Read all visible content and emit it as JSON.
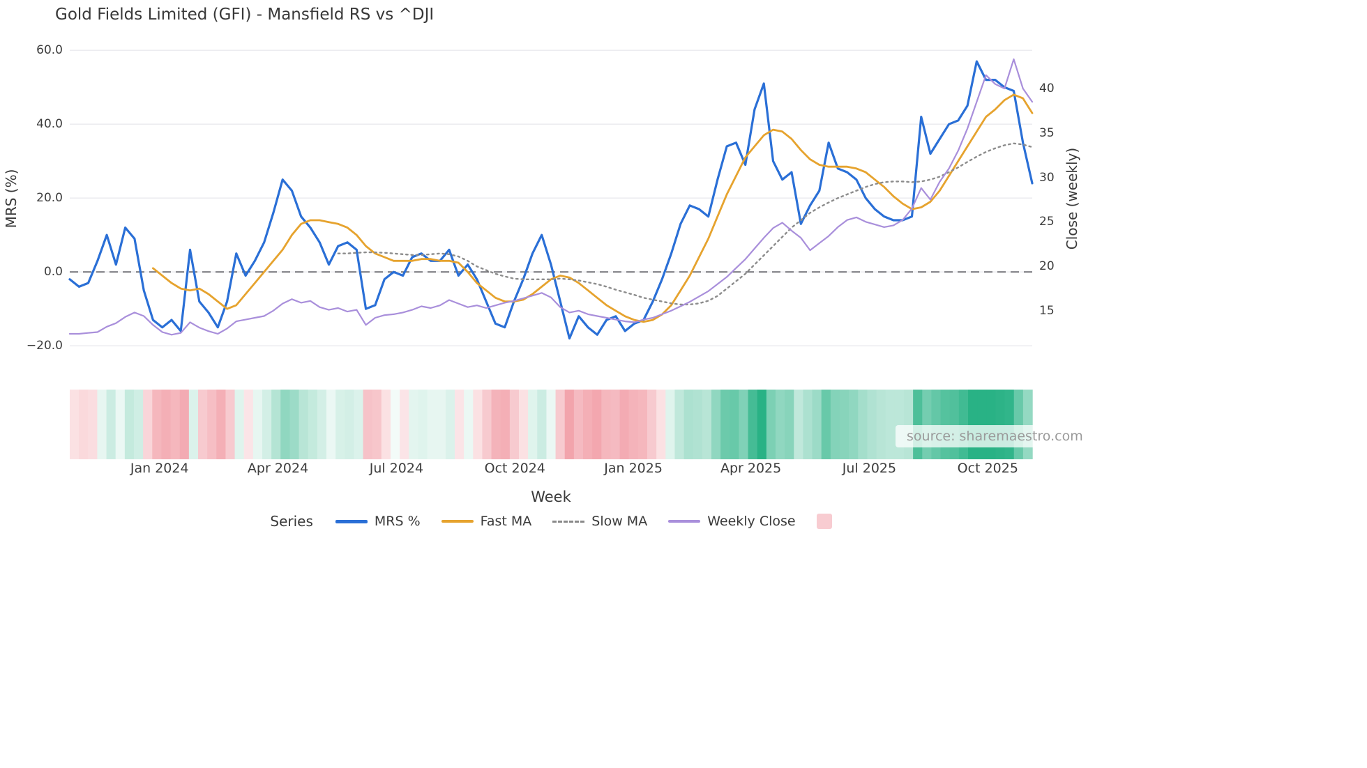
{
  "title": "Gold Fields Limited (GFI) - Mansfield RS vs ^DJI",
  "source_note": "source: sharemaestro.com",
  "chart_data": {
    "type": "line",
    "title": "Gold Fields Limited (GFI) - Mansfield RS vs ^DJI",
    "xlabel": "Week",
    "ylabel_left": "MRS (%)",
    "ylabel_right": "Close (weekly)",
    "n_points": 105,
    "left_axis": {
      "min": -22.6,
      "max": 62.3,
      "ticks": [
        60.0,
        40.0,
        20.0,
        0.0,
        -20.0
      ],
      "tick_labels": [
        "60.0",
        "40.0",
        "20.0",
        "0.0",
        "−20.0"
      ]
    },
    "right_axis": {
      "min": 9.97,
      "max": 45.25,
      "ticks": [
        40,
        35,
        30,
        25,
        20,
        15
      ],
      "tick_labels": [
        "40",
        "35",
        "30",
        "25",
        "20",
        "15"
      ]
    },
    "x_ticks": [
      {
        "pos": 9.7,
        "label": "Jan 2024"
      },
      {
        "pos": 22.5,
        "label": "Apr 2024"
      },
      {
        "pos": 35.3,
        "label": "Jul 2024"
      },
      {
        "pos": 48.1,
        "label": "Oct 2024"
      },
      {
        "pos": 60.9,
        "label": "Jan 2025"
      },
      {
        "pos": 73.6,
        "label": "Apr 2025"
      },
      {
        "pos": 86.4,
        "label": "Jul 2025"
      },
      {
        "pos": 99.2,
        "label": "Oct 2025"
      }
    ],
    "zero_line": 0,
    "grid": true,
    "legend_position": "bottom",
    "series": [
      {
        "name": "MRS %",
        "axis": "left",
        "color": "#2a6fd6",
        "width": 3.2,
        "dash": null,
        "values": [
          -2,
          -4,
          -3,
          3,
          10,
          2,
          12,
          9,
          -5,
          -13,
          -15,
          -13,
          -16,
          6,
          -8,
          -11,
          -15,
          -8,
          5,
          -1,
          3,
          8,
          16,
          25,
          22,
          15,
          12,
          8,
          2,
          7,
          8,
          6,
          -10,
          -9,
          -2,
          0,
          -1,
          4,
          5,
          3,
          3,
          6,
          -1,
          2,
          -2,
          -8,
          -14,
          -15,
          -8,
          -2,
          5,
          10,
          2,
          -8,
          -18,
          -12,
          -15,
          -17,
          -13,
          -12,
          -16,
          -14,
          -13,
          -8,
          -2,
          5,
          13,
          18,
          17,
          15,
          25,
          34,
          35,
          29,
          44,
          51,
          30,
          25,
          27,
          13,
          18,
          22,
          35,
          28,
          27,
          25,
          20,
          17,
          15,
          14,
          14,
          15,
          42,
          32,
          36,
          40,
          41,
          45,
          57,
          52,
          52,
          50,
          49,
          35,
          24
        ]
      },
      {
        "name": "Fast MA",
        "axis": "left",
        "color": "#e6a32e",
        "width": 2.8,
        "dash": null,
        "values": [
          null,
          null,
          null,
          null,
          null,
          null,
          null,
          null,
          null,
          1,
          -1,
          -3,
          -4.5,
          -5,
          -4.5,
          -6,
          -8,
          -10,
          -9,
          -6,
          -3,
          0,
          3,
          6,
          10,
          13,
          14,
          14,
          13.5,
          13,
          12,
          10,
          7,
          5,
          4,
          3,
          3,
          3,
          3.5,
          3.5,
          3,
          3,
          2.5,
          0,
          -3,
          -5,
          -7,
          -8,
          -8,
          -7.5,
          -6,
          -4,
          -2,
          -1,
          -1.5,
          -3,
          -5,
          -7,
          -9,
          -10.5,
          -12,
          -13,
          -13.5,
          -13,
          -11.5,
          -9,
          -5,
          -1,
          4,
          9,
          15,
          21,
          26,
          31,
          34,
          37,
          38.5,
          38,
          36,
          33,
          30.5,
          29,
          28.5,
          28.5,
          28.5,
          28,
          27,
          25,
          23,
          20.5,
          18.5,
          17,
          17.5,
          19,
          22,
          26,
          30,
          34,
          38,
          42,
          44,
          46.5,
          48,
          47,
          43
        ]
      },
      {
        "name": "Slow MA",
        "axis": "left",
        "color": "#8c8c8c",
        "width": 2.4,
        "dash": "2.5 5",
        "values": [
          null,
          null,
          null,
          null,
          null,
          null,
          null,
          null,
          null,
          null,
          null,
          null,
          null,
          null,
          null,
          null,
          null,
          null,
          null,
          null,
          null,
          null,
          null,
          null,
          null,
          null,
          null,
          null,
          null,
          5,
          5,
          5.2,
          5.3,
          5.3,
          5.2,
          5,
          4.8,
          4.6,
          4.6,
          4.8,
          5,
          4.8,
          4.2,
          3,
          1.5,
          0.5,
          -0.5,
          -1.2,
          -1.8,
          -2,
          -2,
          -2,
          -2,
          -1.8,
          -2,
          -2.3,
          -2.8,
          -3.3,
          -4,
          -4.8,
          -5.5,
          -6.2,
          -7,
          -7.5,
          -8,
          -8.5,
          -8.8,
          -8.8,
          -8.5,
          -7.8,
          -6.5,
          -4.5,
          -2.5,
          -0.5,
          2,
          4.5,
          7,
          9.5,
          12,
          14,
          16,
          17.5,
          18.8,
          20,
          21,
          22,
          23,
          23.8,
          24.3,
          24.5,
          24.5,
          24.3,
          24.5,
          25,
          25.8,
          27,
          28.3,
          29.8,
          31.2,
          32.5,
          33.5,
          34.3,
          34.8,
          34.5,
          33.8
        ]
      },
      {
        "name": "Weekly Close",
        "axis": "right",
        "color": "#a98fdb",
        "width": 2.2,
        "dash": null,
        "values": [
          12.4,
          12.4,
          12.5,
          12.6,
          13.2,
          13.6,
          14.3,
          14.8,
          14.4,
          13.4,
          12.6,
          12.3,
          12.5,
          13.7,
          13.1,
          12.7,
          12.4,
          13.0,
          13.8,
          14.0,
          14.2,
          14.4,
          15.0,
          15.8,
          16.3,
          15.9,
          16.1,
          15.4,
          15.1,
          15.3,
          14.9,
          15.1,
          13.4,
          14.2,
          14.5,
          14.6,
          14.8,
          15.1,
          15.5,
          15.3,
          15.6,
          16.2,
          15.8,
          15.4,
          15.6,
          15.3,
          15.6,
          15.9,
          16.1,
          16.4,
          16.7,
          17.0,
          16.5,
          15.4,
          14.8,
          15.0,
          14.6,
          14.4,
          14.2,
          14.0,
          13.8,
          13.7,
          14.0,
          14.2,
          14.6,
          15.0,
          15.5,
          16.0,
          16.6,
          17.2,
          18.0,
          18.8,
          19.8,
          20.8,
          22.0,
          23.2,
          24.3,
          24.9,
          24.0,
          23.2,
          21.8,
          22.6,
          23.4,
          24.4,
          25.2,
          25.5,
          25.0,
          24.7,
          24.4,
          24.6,
          25.2,
          26.5,
          28.8,
          27.5,
          29.5,
          31.0,
          33.0,
          35.5,
          38.5,
          41.5,
          40.5,
          40.0,
          43.3,
          40.0,
          38.5
        ]
      }
    ],
    "heatmap": {
      "source_series": "MRS %",
      "positive_color": "#29b285",
      "negative_color": "#f19ca5",
      "description": "weekly strip colored by MRS % sign and magnitude"
    },
    "legend": {
      "title": "Series",
      "entries": [
        {
          "label": "MRS %",
          "color": "#2a6fd6",
          "style": "solid-thick"
        },
        {
          "label": "Fast MA",
          "color": "#e6a32e",
          "style": "solid"
        },
        {
          "label": "Slow MA",
          "color": "#8a8a8a",
          "style": "dashed"
        },
        {
          "label": "Weekly Close",
          "color": "#a98fdb",
          "style": "solid"
        },
        {
          "label": "",
          "color": "#f8ccd1",
          "style": "swatch"
        }
      ]
    }
  }
}
